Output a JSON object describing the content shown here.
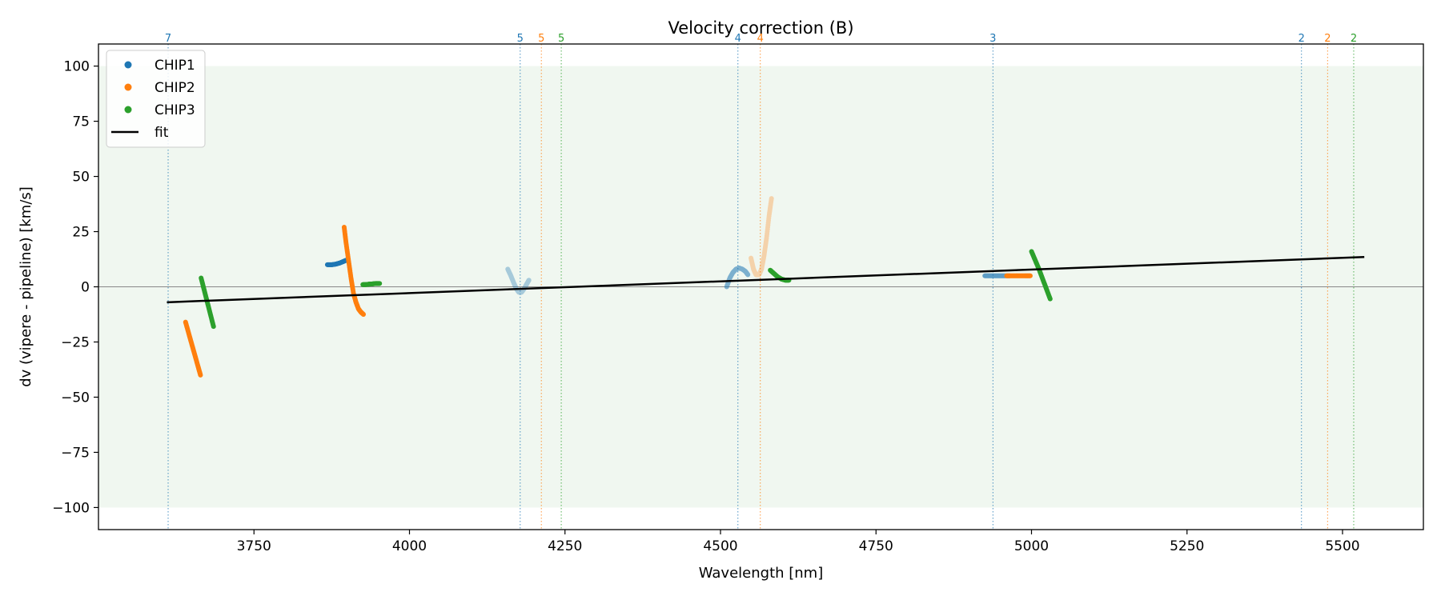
{
  "chart_data": {
    "type": "scatter",
    "title": "Velocity correction (B)",
    "xlabel": "Wavelength [nm]",
    "ylabel": "dv (vipere - pipeline) [km/s]",
    "xlim": [
      3500,
      5630
    ],
    "ylim": [
      -110,
      110
    ],
    "xticks": [
      3750,
      4000,
      4250,
      4500,
      4750,
      5000,
      5250,
      5500
    ],
    "yticks": [
      -100,
      -75,
      -50,
      -25,
      0,
      25,
      50,
      75,
      100
    ],
    "xtick_labels": [
      "3750",
      "4000",
      "4250",
      "4500",
      "4750",
      "5000",
      "5250",
      "5500"
    ],
    "ytick_labels": [
      "−100",
      "−75",
      "−50",
      "−25",
      "0",
      "25",
      "50",
      "75",
      "100"
    ],
    "tolerance_band": [
      -100,
      100
    ],
    "band_color": "#f0f7f0",
    "zero_line_color": "#888888",
    "legend_position": "top-left",
    "legend": [
      {
        "label": "CHIP1",
        "marker": "dot",
        "color": "#1f77b4"
      },
      {
        "label": "CHIP2",
        "marker": "dot",
        "color": "#ff7f0e"
      },
      {
        "label": "CHIP3",
        "marker": "dot",
        "color": "#2ca02c"
      },
      {
        "label": "fit",
        "marker": "line",
        "color": "#000000"
      }
    ],
    "fit": {
      "name": "fit",
      "color": "#000000",
      "x": [
        3610,
        5535
      ],
      "y": [
        -7,
        13.5
      ]
    },
    "order_lines": [
      {
        "x": 3612,
        "label": "7",
        "color": "#1f77b4"
      },
      {
        "x": 4178,
        "label": "5",
        "color": "#1f77b4"
      },
      {
        "x": 4212,
        "label": "5",
        "color": "#ff7f0e"
      },
      {
        "x": 4244,
        "label": "5",
        "color": "#2ca02c"
      },
      {
        "x": 4528,
        "label": "4",
        "color": "#1f77b4"
      },
      {
        "x": 4564,
        "label": "4",
        "color": "#ff7f0e"
      },
      {
        "x": 4938,
        "label": "3",
        "color": "#1f77b4"
      },
      {
        "x": 5434,
        "label": "2",
        "color": "#1f77b4"
      },
      {
        "x": 5476,
        "label": "2",
        "color": "#ff7f0e"
      },
      {
        "x": 5518,
        "label": "2",
        "color": "#2ca02c"
      }
    ],
    "series": [
      {
        "chip": "CHIP1",
        "color": "#1f77b4",
        "opacity": 1.0,
        "x": [
          3868,
          3875,
          3882,
          3888,
          3894,
          3898
        ],
        "y": [
          10,
          10,
          10.3,
          10.8,
          11.5,
          12
        ]
      },
      {
        "chip": "CHIP1",
        "color": "#1f77b4",
        "opacity": 0.35,
        "x": [
          4158,
          4163,
          4168,
          4172,
          4176,
          4180,
          4184,
          4188,
          4192
        ],
        "y": [
          8,
          5,
          1.5,
          -1,
          -2.5,
          -2.5,
          -1,
          1,
          3
        ]
      },
      {
        "chip": "CHIP1",
        "color": "#1f77b4",
        "opacity": 0.55,
        "x": [
          4510,
          4515,
          4520,
          4525,
          4530,
          4535,
          4540,
          4544
        ],
        "y": [
          0,
          4,
          6.5,
          8,
          8.5,
          8,
          7,
          5.5
        ]
      },
      {
        "chip": "CHIP1",
        "color": "#1f77b4",
        "opacity": 0.7,
        "x": [
          4925,
          4935,
          4945,
          4955,
          4965
        ],
        "y": [
          5,
          5,
          5,
          5,
          5
        ]
      },
      {
        "chip": "CHIP2",
        "color": "#ff7f0e",
        "opacity": 1.0,
        "x": [
          3640,
          3645,
          3650,
          3655,
          3660,
          3664
        ],
        "y": [
          -16,
          -21,
          -26,
          -31,
          -36,
          -40
        ]
      },
      {
        "chip": "CHIP2",
        "color": "#ff7f0e",
        "opacity": 1.0,
        "x": [
          3895,
          3898,
          3902,
          3906,
          3910,
          3914,
          3918,
          3922,
          3926
        ],
        "y": [
          27,
          20,
          12,
          4,
          -3,
          -7,
          -10,
          -11.5,
          -12.5
        ]
      },
      {
        "chip": "CHIP2",
        "color": "#ff7f0e",
        "opacity": 0.3,
        "x": [
          4549,
          4553,
          4557,
          4562,
          4566,
          4570,
          4574,
          4578,
          4582
        ],
        "y": [
          13,
          8,
          5.5,
          5.5,
          8,
          14,
          22,
          32,
          40
        ]
      },
      {
        "chip": "CHIP2",
        "color": "#ff7f0e",
        "opacity": 1.0,
        "x": [
          4960,
          4970,
          4980,
          4990,
          4998
        ],
        "y": [
          5,
          5,
          5,
          5,
          5
        ]
      },
      {
        "chip": "CHIP3",
        "color": "#2ca02c",
        "opacity": 1.0,
        "x": [
          3665,
          3670,
          3675,
          3680,
          3685
        ],
        "y": [
          4,
          -1.5,
          -7,
          -12.5,
          -18
        ]
      },
      {
        "chip": "CHIP3",
        "color": "#2ca02c",
        "opacity": 1.0,
        "x": [
          3925,
          3930,
          3935,
          3940,
          3946,
          3952
        ],
        "y": [
          1,
          1,
          1.2,
          1.3,
          1.5,
          1.5
        ]
      },
      {
        "chip": "CHIP3",
        "color": "#2ca02c",
        "opacity": 1.0,
        "x": [
          4580,
          4586,
          4592,
          4598,
          4604,
          4610
        ],
        "y": [
          7.5,
          6,
          4.5,
          3.5,
          3,
          3
        ]
      },
      {
        "chip": "CHIP3",
        "color": "#2ca02c",
        "opacity": 1.0,
        "x": [
          5000,
          5006,
          5012,
          5018,
          5024,
          5030
        ],
        "y": [
          16,
          12,
          8,
          3.5,
          -1,
          -5.5
        ]
      }
    ]
  }
}
